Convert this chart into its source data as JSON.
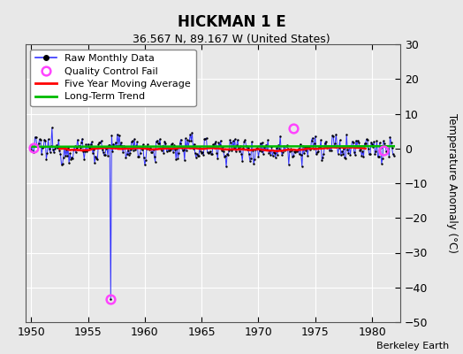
{
  "title": "HICKMAN 1 E",
  "subtitle": "36.567 N, 89.167 W (United States)",
  "ylabel": "Temperature Anomaly (°C)",
  "attribution": "Berkeley Earth",
  "xlim": [
    1949.5,
    1982.5
  ],
  "ylim": [
    -50,
    30
  ],
  "yticks": [
    -50,
    -40,
    -30,
    -20,
    -10,
    0,
    10,
    20,
    30
  ],
  "xticks": [
    1950,
    1955,
    1960,
    1965,
    1970,
    1975,
    1980
  ],
  "bg_color": "#e8e8e8",
  "plot_bg_color": "#e8e8e8",
  "raw_color": "#3333ff",
  "dot_color": "#000000",
  "ma_color": "#ff0000",
  "trend_color": "#00bb00",
  "qc_color": "#ff44ff",
  "seed": 12345,
  "n_months": 384,
  "start_year": 1950.0,
  "spike_index": 84,
  "spike_value": -43.5,
  "qc_indices": [
    3,
    84,
    277,
    372
  ],
  "qc_values": [
    0.3,
    -43.5,
    5.8,
    -0.5
  ],
  "trend_y0": 0.5,
  "trend_y1": 0.65
}
